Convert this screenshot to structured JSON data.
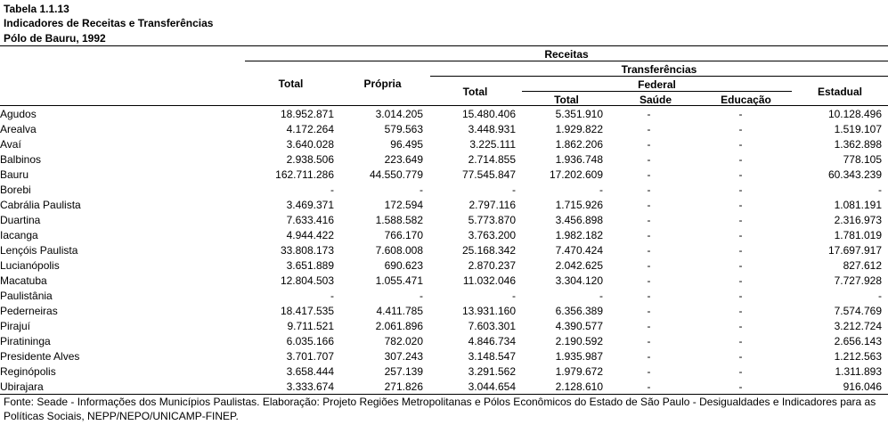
{
  "title": {
    "line1": "Tabela 1.1.13",
    "line2": "Indicadores de Receitas e Transferências",
    "line3": "Pólo de Bauru, 1992"
  },
  "headers": {
    "receitas": "Receitas",
    "transferencias": "Transferências",
    "federal": "Federal",
    "total": "Total",
    "propria": "Própria",
    "transf_total": "Total",
    "federal_total": "Total",
    "saude": "Saúde",
    "educacao": "Educação",
    "estadual": "Estadual"
  },
  "rows": [
    {
      "name": "Agudos",
      "total": "18.952.871",
      "propria": "3.014.205",
      "transf_total": "15.480.406",
      "fed_total": "5.351.910",
      "saude": "-",
      "educacao": "-",
      "estadual": "10.128.496"
    },
    {
      "name": "Arealva",
      "total": "4.172.264",
      "propria": "579.563",
      "transf_total": "3.448.931",
      "fed_total": "1.929.822",
      "saude": "-",
      "educacao": "-",
      "estadual": "1.519.107"
    },
    {
      "name": "Avaí",
      "total": "3.640.028",
      "propria": "96.495",
      "transf_total": "3.225.111",
      "fed_total": "1.862.206",
      "saude": "-",
      "educacao": "-",
      "estadual": "1.362.898"
    },
    {
      "name": "Balbinos",
      "total": "2.938.506",
      "propria": "223.649",
      "transf_total": "2.714.855",
      "fed_total": "1.936.748",
      "saude": "-",
      "educacao": "-",
      "estadual": "778.105"
    },
    {
      "name": "Bauru",
      "total": "162.711.286",
      "propria": "44.550.779",
      "transf_total": "77.545.847",
      "fed_total": "17.202.609",
      "saude": "-",
      "educacao": "-",
      "estadual": "60.343.239"
    },
    {
      "name": "Borebi",
      "total": "-",
      "propria": "-",
      "transf_total": "-",
      "fed_total": "-",
      "saude": "-",
      "educacao": "-",
      "estadual": "-"
    },
    {
      "name": "Cabrália Paulista",
      "total": "3.469.371",
      "propria": "172.594",
      "transf_total": "2.797.116",
      "fed_total": "1.715.926",
      "saude": "-",
      "educacao": "-",
      "estadual": "1.081.191"
    },
    {
      "name": "Duartina",
      "total": "7.633.416",
      "propria": "1.588.582",
      "transf_total": "5.773.870",
      "fed_total": "3.456.898",
      "saude": "-",
      "educacao": "-",
      "estadual": "2.316.973"
    },
    {
      "name": "Iacanga",
      "total": "4.944.422",
      "propria": "766.170",
      "transf_total": "3.763.200",
      "fed_total": "1.982.182",
      "saude": "-",
      "educacao": "-",
      "estadual": "1.781.019"
    },
    {
      "name": "Lençóis Paulista",
      "total": "33.808.173",
      "propria": "7.608.008",
      "transf_total": "25.168.342",
      "fed_total": "7.470.424",
      "saude": "-",
      "educacao": "-",
      "estadual": "17.697.917"
    },
    {
      "name": "Lucianópolis",
      "total": "3.651.889",
      "propria": "690.623",
      "transf_total": "2.870.237",
      "fed_total": "2.042.625",
      "saude": "-",
      "educacao": "-",
      "estadual": "827.612"
    },
    {
      "name": "Macatuba",
      "total": "12.804.503",
      "propria": "1.055.471",
      "transf_total": "11.032.046",
      "fed_total": "3.304.120",
      "saude": "-",
      "educacao": "-",
      "estadual": "7.727.928"
    },
    {
      "name": "Paulistânia",
      "total": "-",
      "propria": "-",
      "transf_total": "-",
      "fed_total": "-",
      "saude": "-",
      "educacao": "-",
      "estadual": "-"
    },
    {
      "name": "Pederneiras",
      "total": "18.417.535",
      "propria": "4.411.785",
      "transf_total": "13.931.160",
      "fed_total": "6.356.389",
      "saude": "-",
      "educacao": "-",
      "estadual": "7.574.769"
    },
    {
      "name": "Pirajuí",
      "total": "9.711.521",
      "propria": "2.061.896",
      "transf_total": "7.603.301",
      "fed_total": "4.390.577",
      "saude": "-",
      "educacao": "-",
      "estadual": "3.212.724"
    },
    {
      "name": "Piratininga",
      "total": "6.035.166",
      "propria": "782.020",
      "transf_total": "4.846.734",
      "fed_total": "2.190.592",
      "saude": "-",
      "educacao": "-",
      "estadual": "2.656.143"
    },
    {
      "name": "Presidente Alves",
      "total": "3.701.707",
      "propria": "307.243",
      "transf_total": "3.148.547",
      "fed_total": "1.935.987",
      "saude": "-",
      "educacao": "-",
      "estadual": "1.212.563"
    },
    {
      "name": "Reginópolis",
      "total": "3.658.444",
      "propria": "257.139",
      "transf_total": "3.291.562",
      "fed_total": "1.979.672",
      "saude": "-",
      "educacao": "-",
      "estadual": "1.311.893"
    },
    {
      "name": "Ubirajara",
      "total": "3.333.674",
      "propria": "271.826",
      "transf_total": "3.044.654",
      "fed_total": "2.128.610",
      "saude": "-",
      "educacao": "-",
      "estadual": "916.046"
    }
  ],
  "footnote": "Fonte: Seade - Informações dos Municípios Paulistas. Elaboração: Projeto Regiões Metropolitanas e Pólos Econômicos do Estado de São Paulo - Desigualdades e Indicadores para as Políticas Sociais, NEPP/NEPO/UNICAMP-FINEP."
}
